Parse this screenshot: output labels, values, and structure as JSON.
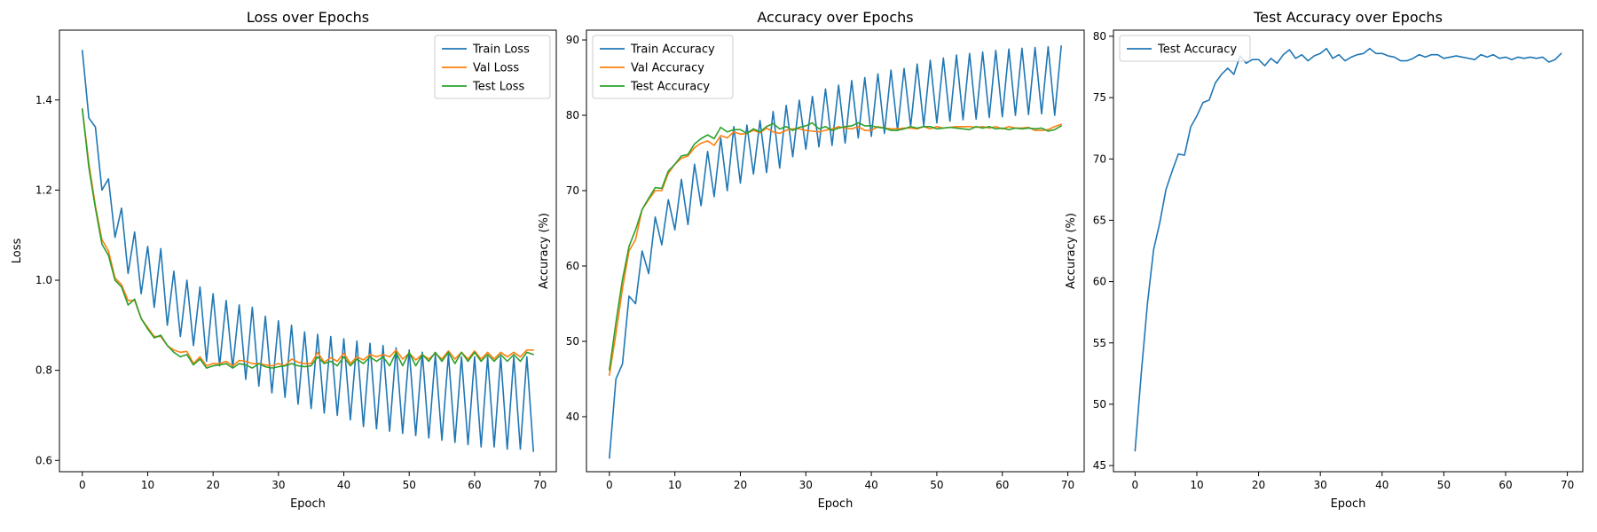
{
  "colors": {
    "train": "#1f77b4",
    "val": "#ff7f0e",
    "test": "#2ca02c"
  },
  "chart_data": [
    {
      "type": "line",
      "title": "Loss over Epochs",
      "xlabel": "Epoch",
      "ylabel": "Loss",
      "xlim": [
        -3.5,
        72.5
      ],
      "ylim": [
        0.575,
        1.555
      ],
      "xticks": [
        0,
        10,
        20,
        30,
        40,
        50,
        60,
        70
      ],
      "yticks": [
        0.6,
        0.8,
        1.0,
        1.2,
        1.4
      ],
      "tick_decimals": 1,
      "legend": "top-right",
      "grid": false,
      "series": [
        {
          "name": "Train Loss",
          "color": "train",
          "values": [
            1.51,
            1.36,
            1.34,
            1.2,
            1.225,
            1.095,
            1.16,
            1.015,
            1.107,
            0.97,
            1.075,
            0.94,
            1.07,
            0.9,
            1.02,
            0.875,
            1.0,
            0.855,
            0.985,
            0.82,
            0.97,
            0.81,
            0.955,
            0.805,
            0.945,
            0.78,
            0.94,
            0.765,
            0.92,
            0.75,
            0.91,
            0.74,
            0.9,
            0.725,
            0.885,
            0.715,
            0.88,
            0.705,
            0.875,
            0.7,
            0.87,
            0.69,
            0.865,
            0.675,
            0.86,
            0.67,
            0.855,
            0.665,
            0.85,
            0.66,
            0.845,
            0.655,
            0.84,
            0.65,
            0.835,
            0.645,
            0.835,
            0.64,
            0.83,
            0.635,
            0.83,
            0.63,
            0.83,
            0.63,
            0.83,
            0.625,
            0.83,
            0.625,
            0.83,
            0.62
          ]
        },
        {
          "name": "Val Loss",
          "color": "val",
          "values": [
            1.38,
            1.26,
            1.165,
            1.09,
            1.065,
            1.005,
            0.99,
            0.955,
            0.955,
            0.915,
            0.895,
            0.875,
            0.875,
            0.855,
            0.845,
            0.84,
            0.842,
            0.815,
            0.83,
            0.81,
            0.815,
            0.815,
            0.82,
            0.81,
            0.822,
            0.82,
            0.815,
            0.815,
            0.812,
            0.81,
            0.815,
            0.81,
            0.825,
            0.818,
            0.815,
            0.815,
            0.84,
            0.818,
            0.828,
            0.82,
            0.838,
            0.815,
            0.83,
            0.823,
            0.835,
            0.83,
            0.835,
            0.83,
            0.845,
            0.825,
            0.838,
            0.823,
            0.835,
            0.825,
            0.838,
            0.825,
            0.843,
            0.825,
            0.84,
            0.825,
            0.843,
            0.825,
            0.84,
            0.825,
            0.84,
            0.83,
            0.84,
            0.83,
            0.845,
            0.845
          ]
        },
        {
          "name": "Test Loss",
          "color": "test",
          "values": [
            1.38,
            1.25,
            1.16,
            1.08,
            1.055,
            1.0,
            0.985,
            0.945,
            0.958,
            0.915,
            0.892,
            0.872,
            0.878,
            0.855,
            0.84,
            0.83,
            0.835,
            0.812,
            0.825,
            0.805,
            0.81,
            0.812,
            0.815,
            0.805,
            0.815,
            0.812,
            0.805,
            0.815,
            0.808,
            0.805,
            0.808,
            0.81,
            0.815,
            0.81,
            0.808,
            0.81,
            0.83,
            0.815,
            0.82,
            0.81,
            0.83,
            0.81,
            0.825,
            0.815,
            0.83,
            0.82,
            0.83,
            0.81,
            0.84,
            0.81,
            0.84,
            0.81,
            0.835,
            0.82,
            0.84,
            0.82,
            0.84,
            0.815,
            0.84,
            0.82,
            0.84,
            0.82,
            0.835,
            0.82,
            0.835,
            0.82,
            0.835,
            0.82,
            0.84,
            0.835
          ]
        }
      ]
    },
    {
      "type": "line",
      "title": "Accuracy over Epochs",
      "xlabel": "Epoch",
      "ylabel": "Accuracy (%)",
      "xlim": [
        -3.5,
        72.5
      ],
      "ylim": [
        32.7,
        91.3
      ],
      "xticks": [
        0,
        10,
        20,
        30,
        40,
        50,
        60,
        70
      ],
      "yticks": [
        40,
        50,
        60,
        70,
        80,
        90
      ],
      "tick_decimals": 0,
      "legend": "top-left",
      "grid": false,
      "series": [
        {
          "name": "Train Accuracy",
          "color": "train",
          "values": [
            34.5,
            45.0,
            47.0,
            56.0,
            55.0,
            62.0,
            59.0,
            66.5,
            62.8,
            68.8,
            64.8,
            71.5,
            65.5,
            73.5,
            68.0,
            75.2,
            69.2,
            77.0,
            70.0,
            78.5,
            71.0,
            78.7,
            72.2,
            79.3,
            72.4,
            80.5,
            73.0,
            81.3,
            74.5,
            82.0,
            75.5,
            82.5,
            75.8,
            83.5,
            76.0,
            84.0,
            76.3,
            84.6,
            77.0,
            85.0,
            77.2,
            85.5,
            77.6,
            86.0,
            78.0,
            86.2,
            78.5,
            86.8,
            78.6,
            87.3,
            79.0,
            87.6,
            79.2,
            88.0,
            79.4,
            88.2,
            79.5,
            88.4,
            79.7,
            88.6,
            79.8,
            88.8,
            80.0,
            88.9,
            80.1,
            89.0,
            80.2,
            89.1,
            80.0,
            89.2
          ]
        },
        {
          "name": "Val Accuracy",
          "color": "val",
          "values": [
            45.5,
            51.0,
            57.0,
            62.0,
            63.5,
            67.5,
            68.8,
            70.0,
            70.0,
            72.3,
            73.5,
            74.3,
            74.6,
            75.7,
            76.3,
            76.6,
            76.0,
            77.3,
            77.0,
            77.8,
            77.5,
            77.6,
            78.0,
            77.7,
            78.3,
            77.8,
            77.6,
            78.0,
            78.2,
            78.2,
            78.0,
            77.9,
            77.8,
            78.0,
            78.2,
            78.5,
            78.3,
            78.2,
            78.5,
            78.0,
            78.0,
            78.5,
            78.3,
            78.2,
            78.2,
            78.3,
            78.3,
            78.2,
            78.5,
            78.2,
            78.5,
            78.3,
            78.4,
            78.5,
            78.5,
            78.5,
            78.4,
            78.5,
            78.3,
            78.5,
            78.2,
            78.5,
            78.3,
            78.3,
            78.4,
            78.0,
            78.0,
            78.1,
            78.5,
            78.8
          ]
        },
        {
          "name": "Test Accuracy",
          "color": "test",
          "values": [
            46.2,
            52.5,
            58.2,
            62.6,
            64.8,
            67.5,
            69.0,
            70.4,
            70.3,
            72.6,
            73.5,
            74.6,
            74.8,
            76.2,
            76.9,
            77.4,
            76.9,
            78.4,
            77.8,
            78.1,
            78.1,
            77.6,
            78.2,
            77.8,
            78.5,
            78.9,
            78.2,
            78.5,
            78.0,
            78.4,
            78.6,
            79.0,
            78.2,
            78.5,
            78.0,
            78.3,
            78.5,
            78.6,
            79.0,
            78.6,
            78.6,
            78.4,
            78.3,
            78.0,
            78.0,
            78.2,
            78.5,
            78.3,
            78.5,
            78.5,
            78.2,
            78.3,
            78.4,
            78.3,
            78.2,
            78.1,
            78.5,
            78.3,
            78.5,
            78.2,
            78.3,
            78.1,
            78.3,
            78.2,
            78.3,
            78.2,
            78.3,
            77.9,
            78.1,
            78.6
          ]
        }
      ]
    },
    {
      "type": "line",
      "title": "Test Accuracy over Epochs",
      "xlabel": "Epoch",
      "ylabel": "Accuracy (%)",
      "xlim": [
        -3.5,
        72.5
      ],
      "ylim": [
        44.5,
        80.5
      ],
      "xticks": [
        0,
        10,
        20,
        30,
        40,
        50,
        60,
        70
      ],
      "yticks": [
        45,
        50,
        55,
        60,
        65,
        70,
        75,
        80
      ],
      "tick_decimals": 0,
      "legend": "top-left",
      "grid": false,
      "series": [
        {
          "name": "Test Accuracy",
          "color": "train",
          "values": [
            46.2,
            52.5,
            58.2,
            62.6,
            64.8,
            67.5,
            69.0,
            70.4,
            70.3,
            72.6,
            73.5,
            74.6,
            74.8,
            76.2,
            76.9,
            77.4,
            76.9,
            78.4,
            77.8,
            78.1,
            78.1,
            77.6,
            78.2,
            77.8,
            78.5,
            78.9,
            78.2,
            78.5,
            78.0,
            78.4,
            78.6,
            79.0,
            78.2,
            78.5,
            78.0,
            78.3,
            78.5,
            78.6,
            79.0,
            78.6,
            78.6,
            78.4,
            78.3,
            78.0,
            78.0,
            78.2,
            78.5,
            78.3,
            78.5,
            78.5,
            78.2,
            78.3,
            78.4,
            78.3,
            78.2,
            78.1,
            78.5,
            78.3,
            78.5,
            78.2,
            78.3,
            78.1,
            78.3,
            78.2,
            78.3,
            78.2,
            78.3,
            77.9,
            78.1,
            78.6
          ]
        }
      ]
    }
  ]
}
